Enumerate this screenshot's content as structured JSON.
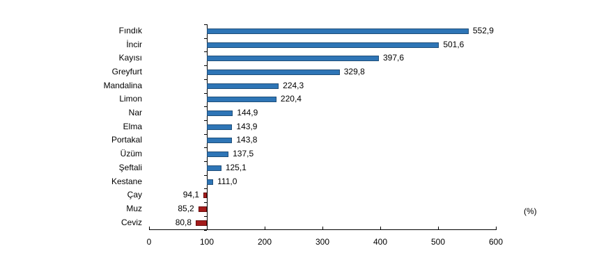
{
  "chart_data": {
    "type": "bar",
    "orientation": "horizontal",
    "title": "",
    "xlabel": "",
    "ylabel": "",
    "unit_label": "(%)",
    "baseline": 100,
    "xlim": [
      0,
      600
    ],
    "xticks": [
      0,
      100,
      200,
      300,
      400,
      500,
      600
    ],
    "grid": false,
    "categories": [
      "Fındık",
      "İncir",
      "Kayısı",
      "Greyfurt",
      "Mandalina",
      "Limon",
      "Nar",
      "Elma",
      "Portakal",
      "Üzüm",
      "Şeftali",
      "Kestane",
      "Çay",
      "Muz",
      "Ceviz"
    ],
    "values": [
      552.9,
      501.6,
      397.6,
      329.8,
      224.3,
      220.4,
      144.9,
      143.9,
      143.8,
      137.5,
      125.1,
      111.0,
      94.1,
      85.2,
      80.8
    ],
    "value_labels": [
      "552,9",
      "501,6",
      "397,6",
      "329,8",
      "224,3",
      "220,4",
      "144,9",
      "143,9",
      "143,8",
      "137,5",
      "125,1",
      "111,0",
      "94,1",
      "85,2",
      "80,8"
    ],
    "colors": {
      "above": "#2e75b6",
      "above_border": "#1f4e79",
      "below": "#a31b1b",
      "below_border": "#6b0f0f"
    }
  }
}
